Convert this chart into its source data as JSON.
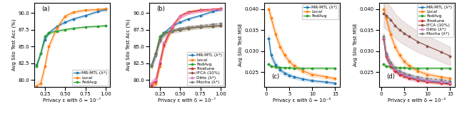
{
  "panel_a": {
    "title": "(a)",
    "xlabel": "Privacy ε with δ = 10⁻⁷",
    "ylabel": "Avg Silo Test Acc (%)",
    "xlim": [
      0.12,
      1.05
    ],
    "ylim": [
      79.0,
      91.5
    ],
    "yticks": [
      80.0,
      82.5,
      85.0,
      87.5,
      90.0
    ],
    "xticks": [
      0.25,
      0.5,
      0.75,
      1.0
    ],
    "x": [
      0.15,
      0.2,
      0.25,
      0.3,
      0.4,
      0.5,
      0.6,
      0.75,
      0.9,
      1.0
    ],
    "series": {
      "MR-MTL (λ*)": {
        "y": [
          82.3,
          84.0,
          86.0,
          87.0,
          88.0,
          88.6,
          89.1,
          89.6,
          90.2,
          90.5
        ],
        "yerr": [
          0.25,
          0.25,
          0.25,
          0.22,
          0.2,
          0.18,
          0.16,
          0.15,
          0.14,
          0.13
        ],
        "color": "#1f77b4",
        "marker": "o",
        "linestyle": "-"
      },
      "Local": {
        "y": [
          79.1,
          79.5,
          82.0,
          85.0,
          87.8,
          89.5,
          90.1,
          90.4,
          90.5,
          90.6
        ],
        "yerr": [
          0.6,
          0.6,
          0.5,
          0.4,
          0.3,
          0.25,
          0.2,
          0.18,
          0.16,
          0.15
        ],
        "color": "#ff7f0e",
        "marker": "o",
        "linestyle": "-"
      },
      "FedAvg": {
        "y": [
          82.0,
          84.0,
          86.5,
          87.0,
          87.3,
          87.5,
          87.7,
          87.9,
          88.0,
          88.1
        ],
        "yerr": [
          0.2,
          0.2,
          0.18,
          0.18,
          0.16,
          0.15,
          0.14,
          0.13,
          0.12,
          0.12
        ],
        "color": "#2ca02c",
        "marker": "o",
        "linestyle": "-"
      }
    },
    "legend_order": [
      "MR-MTL (λ*)",
      "Local",
      "FedAvg"
    ],
    "legend_loc": "lower right"
  },
  "panel_b": {
    "title": "(b)",
    "xlabel": "Privacy ε with δ = 10⁻⁷",
    "ylabel": "Avg Silo Test Acc (%)",
    "xlim": [
      0.12,
      1.05
    ],
    "ylim": [
      79.0,
      91.5
    ],
    "yticks": [
      80.0,
      82.5,
      85.0,
      87.5,
      90.0
    ],
    "xticks": [
      0.25,
      0.5,
      0.75,
      1.0
    ],
    "x": [
      0.15,
      0.2,
      0.25,
      0.3,
      0.4,
      0.5,
      0.6,
      0.75,
      0.9,
      1.0
    ],
    "series": {
      "MR-MTL (λ*)": {
        "y": [
          82.3,
          84.0,
          86.0,
          87.0,
          88.0,
          88.6,
          89.1,
          89.6,
          90.2,
          90.5
        ],
        "yerr": [
          0.25,
          0.25,
          0.25,
          0.22,
          0.2,
          0.18,
          0.16,
          0.15,
          0.14,
          0.13
        ],
        "color": "#1f77b4",
        "marker": "o",
        "linestyle": "-"
      },
      "Local": {
        "y": [
          79.1,
          79.5,
          82.0,
          85.0,
          87.8,
          89.5,
          90.1,
          90.4,
          90.5,
          90.6
        ],
        "yerr": [
          0.6,
          0.6,
          0.5,
          0.4,
          0.3,
          0.25,
          0.2,
          0.18,
          0.16,
          0.15
        ],
        "color": "#ff7f0e",
        "marker": "o",
        "linestyle": "-"
      },
      "FedAvg": {
        "y": [
          82.0,
          84.0,
          86.5,
          87.0,
          87.3,
          87.5,
          87.7,
          87.9,
          88.0,
          88.1
        ],
        "yerr": [
          0.2,
          0.2,
          0.18,
          0.18,
          0.16,
          0.15,
          0.14,
          0.13,
          0.12,
          0.12
        ],
        "color": "#2ca02c",
        "marker": "o",
        "linestyle": "-"
      },
      "Finetune": {
        "y": [
          79.3,
          79.8,
          82.5,
          85.2,
          87.9,
          89.5,
          90.1,
          90.4,
          90.5,
          90.6
        ],
        "yerr": [
          0.6,
          0.6,
          0.5,
          0.4,
          0.35,
          0.28,
          0.22,
          0.2,
          0.18,
          0.17
        ],
        "color": "#d62728",
        "marker": "o",
        "linestyle": "-"
      },
      "IFCA (10%)": {
        "y": [
          82.1,
          83.8,
          86.0,
          86.8,
          87.3,
          87.5,
          87.7,
          87.9,
          88.0,
          88.1
        ],
        "yerr": [
          0.5,
          0.5,
          0.45,
          0.4,
          0.35,
          0.3,
          0.28,
          0.25,
          0.22,
          0.2
        ],
        "color": "#8c564b",
        "marker": "o",
        "linestyle": "-"
      },
      "Ditto (λ*)": {
        "y": [
          79.5,
          80.0,
          82.8,
          85.5,
          88.0,
          89.5,
          90.0,
          90.3,
          90.5,
          90.5
        ],
        "yerr": [
          0.5,
          0.5,
          0.4,
          0.35,
          0.3,
          0.25,
          0.22,
          0.2,
          0.18,
          0.17
        ],
        "color": "#e377c2",
        "marker": "o",
        "linestyle": "--"
      },
      "Mocha (λ*)": {
        "y": [
          82.2,
          83.6,
          85.8,
          86.8,
          87.4,
          87.7,
          87.9,
          88.1,
          88.3,
          88.4
        ],
        "yerr": [
          0.3,
          0.3,
          0.28,
          0.25,
          0.22,
          0.2,
          0.18,
          0.17,
          0.16,
          0.15
        ],
        "color": "#7f7f7f",
        "marker": "o",
        "linestyle": "--"
      }
    },
    "legend_order": [
      "MR-MTL (λ*)",
      "Local",
      "FedAvg",
      "Finetune",
      "IFCA (10%)",
      "Ditto (λ*)",
      "Mocha (λ*)"
    ],
    "legend_loc": "lower right"
  },
  "panel_c": {
    "title": "(c)",
    "xlabel": "Privacy ε with δ = 10⁻³",
    "ylabel": "Avg Silo Test MSE",
    "xlim": [
      -0.5,
      16
    ],
    "ylim": [
      0.0215,
      0.0415
    ],
    "yticks": [
      0.025,
      0.03,
      0.035,
      0.04
    ],
    "xticks": [
      0,
      5,
      10,
      15
    ],
    "x": [
      0.5,
      1,
      2,
      3,
      4,
      5,
      6,
      8,
      10,
      13,
      15
    ],
    "series": {
      "MR-MTL (λ*)": {
        "y": [
          0.033,
          0.029,
          0.0267,
          0.0255,
          0.0247,
          0.0242,
          0.0238,
          0.0233,
          0.0229,
          0.0226,
          0.0223
        ],
        "yerr": [
          0.001,
          0.0009,
          0.0007,
          0.0006,
          0.0005,
          0.0005,
          0.0004,
          0.0004,
          0.0003,
          0.0003,
          0.0003
        ],
        "color": "#1f77b4",
        "marker": "o",
        "linestyle": "-"
      },
      "Local": {
        "y": [
          0.04,
          0.038,
          0.034,
          0.031,
          0.029,
          0.0275,
          0.0265,
          0.0252,
          0.0244,
          0.0238,
          0.0234
        ],
        "yerr": [
          0.0012,
          0.0011,
          0.001,
          0.0009,
          0.0008,
          0.0007,
          0.0006,
          0.0005,
          0.0005,
          0.0004,
          0.0004
        ],
        "color": "#ff7f0e",
        "marker": "o",
        "linestyle": "-"
      },
      "FedAvg": {
        "y": [
          0.0268,
          0.0264,
          0.0262,
          0.0261,
          0.026,
          0.026,
          0.0259,
          0.0259,
          0.0259,
          0.0259,
          0.0259
        ],
        "yerr": [
          0.0003,
          0.0003,
          0.0002,
          0.0002,
          0.0002,
          0.0002,
          0.0002,
          0.0002,
          0.0002,
          0.0002,
          0.0002
        ],
        "color": "#2ca02c",
        "marker": "o",
        "linestyle": "-"
      }
    },
    "legend_order": [
      "MR-MTL (λ*)",
      "Local",
      "FedAvg"
    ],
    "legend_loc": "upper right"
  },
  "panel_d": {
    "title": "(d)",
    "xlabel": "Privacy ε with δ = 10⁻³",
    "ylabel": "Avg Silo Test MSE",
    "xlim": [
      -0.5,
      16
    ],
    "ylim": [
      0.0215,
      0.0415
    ],
    "yticks": [
      0.025,
      0.03,
      0.035,
      0.04
    ],
    "xticks": [
      0,
      5,
      10,
      15
    ],
    "x": [
      0.5,
      1,
      2,
      3,
      4,
      5,
      6,
      8,
      10,
      13,
      15
    ],
    "series": {
      "MR-MTL (λ*)": {
        "y": [
          0.033,
          0.029,
          0.0267,
          0.0255,
          0.0247,
          0.0242,
          0.0238,
          0.0233,
          0.0229,
          0.0226,
          0.0223
        ],
        "yerr": [
          0.001,
          0.0009,
          0.0007,
          0.0006,
          0.0005,
          0.0005,
          0.0004,
          0.0004,
          0.0003,
          0.0003,
          0.0003
        ],
        "color": "#1f77b4",
        "marker": "o",
        "linestyle": "-"
      },
      "Local": {
        "y": [
          0.04,
          0.038,
          0.034,
          0.031,
          0.029,
          0.0275,
          0.0265,
          0.0252,
          0.0244,
          0.0238,
          0.0234
        ],
        "yerr": [
          0.0012,
          0.0011,
          0.001,
          0.0009,
          0.0008,
          0.0007,
          0.0006,
          0.0005,
          0.0005,
          0.0004,
          0.0004
        ],
        "color": "#ff7f0e",
        "marker": "o",
        "linestyle": "-"
      },
      "FedAvg": {
        "y": [
          0.0268,
          0.0264,
          0.0262,
          0.0261,
          0.026,
          0.026,
          0.0259,
          0.0259,
          0.0259,
          0.0259,
          0.0259
        ],
        "yerr": [
          0.0003,
          0.0003,
          0.0002,
          0.0002,
          0.0002,
          0.0002,
          0.0002,
          0.0002,
          0.0002,
          0.0002,
          0.0002
        ],
        "color": "#2ca02c",
        "marker": "o",
        "linestyle": "-"
      },
      "Finetune": {
        "y": [
          0.0328,
          0.0288,
          0.0265,
          0.0252,
          0.0244,
          0.0239,
          0.0235,
          0.023,
          0.0226,
          0.0223,
          0.0221
        ],
        "yerr": [
          0.001,
          0.0009,
          0.0007,
          0.0006,
          0.0005,
          0.0005,
          0.0004,
          0.0004,
          0.0003,
          0.0003,
          0.0003
        ],
        "color": "#d62728",
        "marker": "o",
        "linestyle": "-"
      },
      "IFCA (10%)": {
        "y": [
          0.039,
          0.0385,
          0.0375,
          0.036,
          0.035,
          0.0342,
          0.0335,
          0.0322,
          0.0312,
          0.0298,
          0.0288
        ],
        "yerr": [
          0.0035,
          0.0033,
          0.0031,
          0.0029,
          0.0028,
          0.0027,
          0.0026,
          0.0025,
          0.0024,
          0.0023,
          0.0022
        ],
        "color": "#8c564b",
        "marker": "o",
        "linestyle": "-"
      },
      "Ditto (λ*)": {
        "y": [
          0.0332,
          0.0292,
          0.0268,
          0.0256,
          0.0248,
          0.0243,
          0.0239,
          0.0234,
          0.023,
          0.0227,
          0.0224
        ],
        "yerr": [
          0.001,
          0.0009,
          0.0007,
          0.0006,
          0.0005,
          0.0005,
          0.0004,
          0.0004,
          0.0003,
          0.0003,
          0.0003
        ],
        "color": "#e377c2",
        "marker": "o",
        "linestyle": "--"
      },
      "Mocha (λ*)": {
        "y": [
          0.0335,
          0.0295,
          0.0272,
          0.026,
          0.0252,
          0.0247,
          0.0243,
          0.0238,
          0.0234,
          0.0231,
          0.0228
        ],
        "yerr": [
          0.0009,
          0.0008,
          0.0007,
          0.0006,
          0.0005,
          0.0005,
          0.0004,
          0.0004,
          0.0003,
          0.0003,
          0.0003
        ],
        "color": "#7f7f7f",
        "marker": "o",
        "linestyle": "--"
      }
    },
    "legend_order": [
      "MR-MTL (λ*)",
      "Local",
      "FedAvg",
      "Finetune",
      "IFCA (10%)",
      "Ditto (λ*)",
      "Mocha (λ*)"
    ],
    "legend_loc": "upper right"
  }
}
